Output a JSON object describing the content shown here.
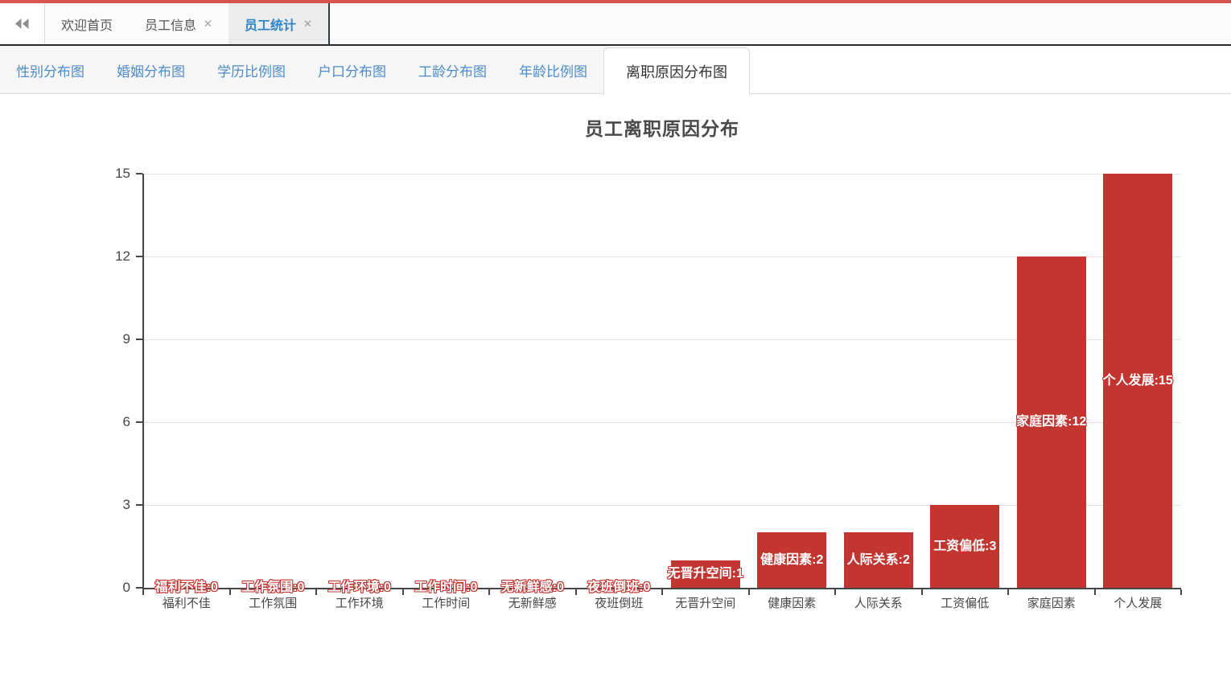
{
  "accent": {
    "topbar_color": "#d9534f"
  },
  "icons": {
    "close": "✕",
    "collapse": "double-chevron-left"
  },
  "main_tabs": {
    "items": [
      {
        "label": "欢迎首页",
        "closable": false,
        "active": false
      },
      {
        "label": "员工信息",
        "closable": true,
        "active": false
      },
      {
        "label": "员工统计",
        "closable": true,
        "active": true
      }
    ]
  },
  "chart_tabs": {
    "items": [
      {
        "label": "性别分布图",
        "active": false
      },
      {
        "label": "婚姻分布图",
        "active": false
      },
      {
        "label": "学历比例图",
        "active": false
      },
      {
        "label": "户口分布图",
        "active": false
      },
      {
        "label": "工龄分布图",
        "active": false
      },
      {
        "label": "年龄比例图",
        "active": false
      },
      {
        "label": "离职原因分布图",
        "active": true
      }
    ]
  },
  "chart_data": {
    "type": "bar",
    "title": "员工离职原因分布",
    "categories": [
      "福利不佳",
      "工作氛围",
      "工作环境",
      "工作时间",
      "无新鲜感",
      "夜班倒班",
      "无晋升空间",
      "健康因素",
      "人际关系",
      "工资偏低",
      "家庭因素",
      "个人发展"
    ],
    "values": [
      0,
      0,
      0,
      0,
      0,
      0,
      1,
      2,
      2,
      3,
      12,
      15
    ],
    "bar_labels": [
      "福利不佳:0",
      "工作氛围:0",
      "工作环境:0",
      "工作时间:0",
      "无新鲜感:0",
      "夜班倒班:0",
      "无晋升空间:1",
      "健康因素:2",
      "人际关系:2",
      "工资偏低:3",
      "家庭因素:12",
      "个人发展:15"
    ],
    "xlabel": "",
    "ylabel": "",
    "ylim": [
      0,
      15
    ],
    "yticks": [
      0,
      3,
      6,
      9,
      12,
      15
    ],
    "grid": true,
    "legend_position": "none",
    "bar_color": "#c23531",
    "label_color": "#ffffff",
    "label_outline_color": "#c23531",
    "axis_color": "#464646",
    "grid_color": "#e4e4e4",
    "text_color": "#464646"
  }
}
